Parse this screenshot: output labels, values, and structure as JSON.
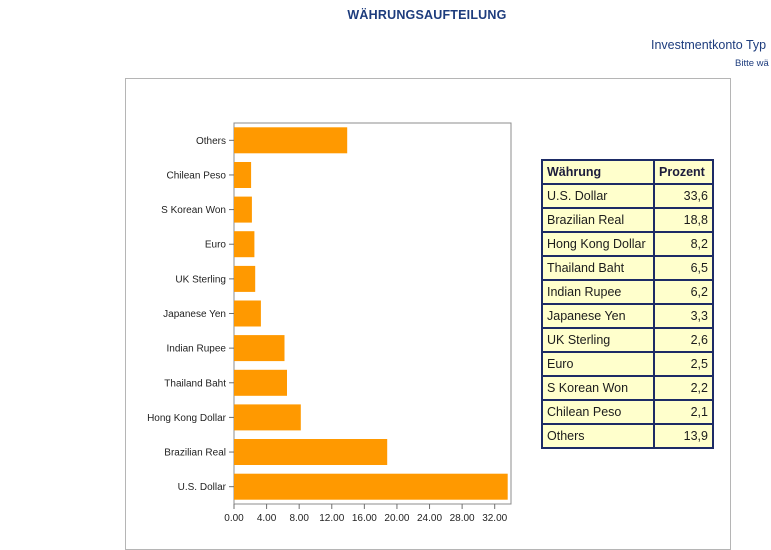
{
  "page": {
    "title": "WÄHRUNGSAUFTEILUNG",
    "account_type_label": "Investmentkonto Typ",
    "hint_text": "Bitte wä"
  },
  "colors": {
    "bar": "#ff9900",
    "title": "#1d3c7d",
    "table_fill": "#ffffcc",
    "table_border": "#1d2b66"
  },
  "chart_data": {
    "type": "bar",
    "orientation": "horizontal",
    "categories": [
      "U.S. Dollar",
      "Brazilian Real",
      "Hong Kong Dollar",
      "Thailand Baht",
      "Indian Rupee",
      "Japanese Yen",
      "UK Sterling",
      "Euro",
      "S Korean Won",
      "Chilean Peso",
      "Others"
    ],
    "values": [
      33.6,
      18.8,
      8.2,
      6.5,
      6.2,
      3.3,
      2.6,
      2.5,
      2.2,
      2.1,
      13.9
    ],
    "x_ticks": [
      "0.00",
      "4.00",
      "8.00",
      "12.00",
      "16.00",
      "20.00",
      "24.00",
      "28.00",
      "32.00"
    ],
    "xlim": [
      0,
      34
    ],
    "grid": false,
    "legend": "none"
  },
  "table": {
    "headers": [
      "Währung",
      "Prozent"
    ],
    "rows": [
      {
        "name": "U.S. Dollar",
        "value": "33,6"
      },
      {
        "name": "Brazilian Real",
        "value": "18,8"
      },
      {
        "name": "Hong Kong Dollar",
        "value": "8,2"
      },
      {
        "name": "Thailand Baht",
        "value": "6,5"
      },
      {
        "name": "Indian Rupee",
        "value": "6,2"
      },
      {
        "name": "Japanese Yen",
        "value": "3,3"
      },
      {
        "name": "UK Sterling",
        "value": "2,6"
      },
      {
        "name": "Euro",
        "value": "2,5"
      },
      {
        "name": "S Korean Won",
        "value": "2,2"
      },
      {
        "name": "Chilean Peso",
        "value": "2,1"
      },
      {
        "name": "Others",
        "value": "13,9"
      }
    ]
  }
}
